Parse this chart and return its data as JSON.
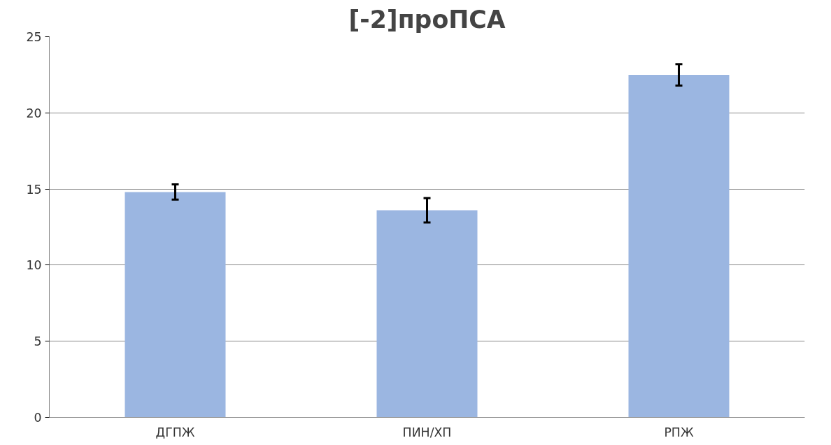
{
  "chart_data": {
    "type": "bar",
    "title": "[-2]проПСА",
    "categories": [
      "ДГПЖ",
      "ПИН/ХП",
      "РПЖ"
    ],
    "values": [
      14.8,
      13.6,
      22.5
    ],
    "errors": [
      0.5,
      0.8,
      0.7
    ],
    "color": "#9bb6e1",
    "ylim": [
      0,
      25
    ],
    "yticks": [
      0,
      5,
      10,
      15,
      20,
      25
    ],
    "grid": "y"
  }
}
